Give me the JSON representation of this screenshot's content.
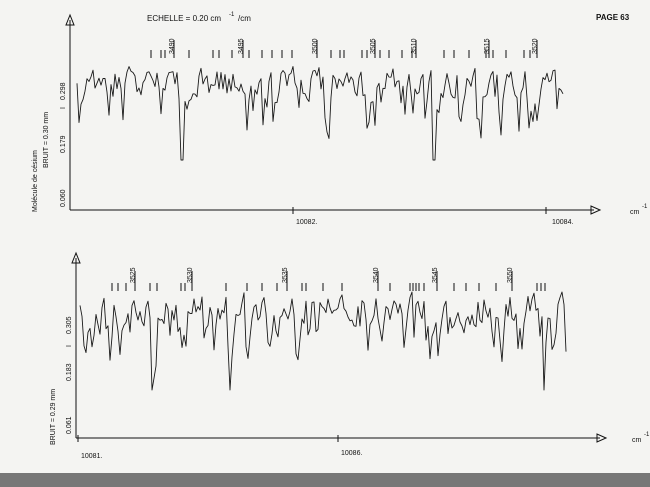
{
  "header": {
    "scale_label": "ECHELLE = 0.20 cm",
    "scale_exponent": "-1",
    "scale_unit": "/cm",
    "page_number": "PAGE 63"
  },
  "unit_label": "cm",
  "unit_exponent": "-1",
  "side_label": "Molécule de césium",
  "panels": [
    {
      "noise_label": "BRUIT = 0.30 mm",
      "yticks": [
        "0.298",
        "0.179",
        "0.060"
      ],
      "i_label": "I",
      "line_labels": [
        "3490",
        "3495",
        "3500",
        "3505",
        "3510",
        "3515",
        "3520"
      ],
      "x_labels": [
        "10082.",
        "10084."
      ]
    },
    {
      "noise_label": "BRUIT = 0.29 mm",
      "yticks": [
        "0.305",
        "0.183",
        "0.061"
      ],
      "i_label": "I",
      "line_labels": [
        "3525",
        "3530",
        "3535",
        "3540",
        "3545",
        "3550"
      ],
      "x_labels": [
        "10081.",
        "10086."
      ]
    }
  ]
}
